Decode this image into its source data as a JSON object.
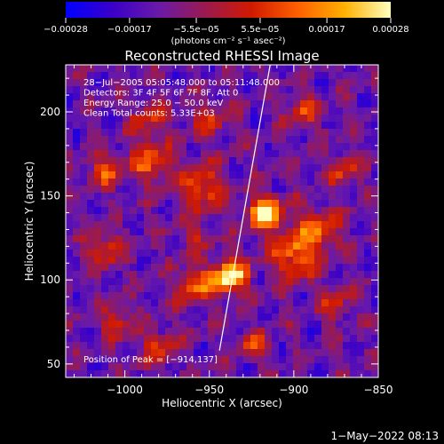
{
  "chart_data": {
    "type": "heatmap",
    "title": "Reconstructed RHESSI Image",
    "xlabel": "Heliocentric X (arcsec)",
    "ylabel": "Heliocentric Y (arcsec)",
    "xlim": [
      -1035,
      -850
    ],
    "ylim": [
      42,
      228
    ],
    "x_ticks": [
      -1000,
      -950,
      -900,
      -850
    ],
    "x_tick_labels": [
      "−1000",
      "−950",
      "−900",
      "−850"
    ],
    "y_ticks": [
      50,
      100,
      150,
      200
    ],
    "y_tick_labels": [
      "50",
      "100",
      "150",
      "200"
    ],
    "colorbar": {
      "range": [
        -0.00028,
        0.00028
      ],
      "ticks": [
        -0.00028,
        -0.00017,
        -5.5e-05,
        5.5e-05,
        0.00017,
        0.00028
      ],
      "tick_labels": [
        "−0.00028",
        "−0.00017",
        "−5.5e−05",
        "5.5e−05",
        "0.00017",
        "0.00028"
      ],
      "label": "(photons cm⁻² s⁻¹ asec⁻²)",
      "colors": [
        "#0000ff",
        "#3a00c8",
        "#6a1aa8",
        "#9a1a50",
        "#d01a00",
        "#ff6000",
        "#ffb000",
        "#ffffc0"
      ]
    },
    "annotations": [
      "28−Jul−2005 05:05:48.000 to 05:11:48.000",
      "Detectors: 3F 4F 5F 6F 7F 8F, Att 0",
      "Energy Range: 25.0 − 50.0 keV",
      "Clean     Total counts: 5.33E+03"
    ],
    "peak_label": "Position of Peak = [−914,137]",
    "limb_line": [
      [
        -944,
        58
      ],
      [
        -914,
        228
      ]
    ],
    "peak": [
      -914,
      137
    ],
    "bright_sources": [
      {
        "x": -917,
        "y": 140,
        "amp": 1.0,
        "sigma": 7
      },
      {
        "x": -938,
        "y": 102,
        "amp": 1.0,
        "sigma": 7
      },
      {
        "x": -958,
        "y": 96,
        "amp": 0.55,
        "sigma": 8
      },
      {
        "x": -900,
        "y": 115,
        "amp": 0.6,
        "sigma": 10
      },
      {
        "x": -885,
        "y": 130,
        "amp": 0.5,
        "sigma": 9
      },
      {
        "x": -955,
        "y": 155,
        "amp": 0.55,
        "sigma": 9
      },
      {
        "x": -985,
        "y": 170,
        "amp": 0.5,
        "sigma": 9
      },
      {
        "x": -1012,
        "y": 165,
        "amp": 0.45,
        "sigma": 7
      },
      {
        "x": -1012,
        "y": 118,
        "amp": 0.45,
        "sigma": 8
      },
      {
        "x": -985,
        "y": 195,
        "amp": 0.35,
        "sigma": 8
      },
      {
        "x": -950,
        "y": 195,
        "amp": 0.35,
        "sigma": 8
      },
      {
        "x": -895,
        "y": 200,
        "amp": 0.4,
        "sigma": 7
      },
      {
        "x": -870,
        "y": 165,
        "amp": 0.4,
        "sigma": 7
      },
      {
        "x": -1005,
        "y": 75,
        "amp": 0.4,
        "sigma": 7
      },
      {
        "x": -980,
        "y": 60,
        "amp": 0.45,
        "sigma": 7
      },
      {
        "x": -925,
        "y": 62,
        "amp": 0.45,
        "sigma": 6
      },
      {
        "x": -875,
        "y": 85,
        "amp": 0.35,
        "sigma": 7
      },
      {
        "x": -960,
        "y": 125,
        "amp": 0.3,
        "sigma": 6
      }
    ]
  },
  "footer": {
    "timestamp": "1−May−2022 08:13"
  }
}
